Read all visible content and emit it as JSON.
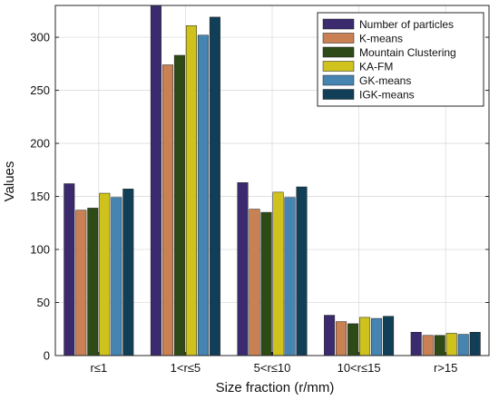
{
  "chart_data": {
    "type": "bar",
    "title": "",
    "xlabel": "Size fraction (r/mm)",
    "ylabel": "Values",
    "ylim": [
      0,
      330
    ],
    "yticks": [
      0,
      50,
      100,
      150,
      200,
      250,
      300
    ],
    "grid": true,
    "legend_position": "top-right",
    "categories": [
      "r≤1",
      "1<r≤5",
      "5<r≤10",
      "10<r≤15",
      "r>15"
    ],
    "series": [
      {
        "name": "Number of particles",
        "color": "#3b2a6e",
        "values": [
          162,
          330,
          163,
          38,
          22
        ]
      },
      {
        "name": "K-means",
        "color": "#c98052",
        "values": [
          137,
          274,
          138,
          32,
          19
        ]
      },
      {
        "name": "Mountain Clustering",
        "color": "#2e4a16",
        "values": [
          139,
          283,
          135,
          30,
          19
        ]
      },
      {
        "name": "KA-FM",
        "color": "#cfc21c",
        "values": [
          153,
          311,
          154,
          36,
          21
        ]
      },
      {
        "name": "GK-means",
        "color": "#4684b2",
        "values": [
          149,
          302,
          149,
          35,
          20
        ]
      },
      {
        "name": "IGK-means",
        "color": "#123f58",
        "values": [
          157,
          319,
          159,
          37,
          22
        ]
      }
    ]
  }
}
